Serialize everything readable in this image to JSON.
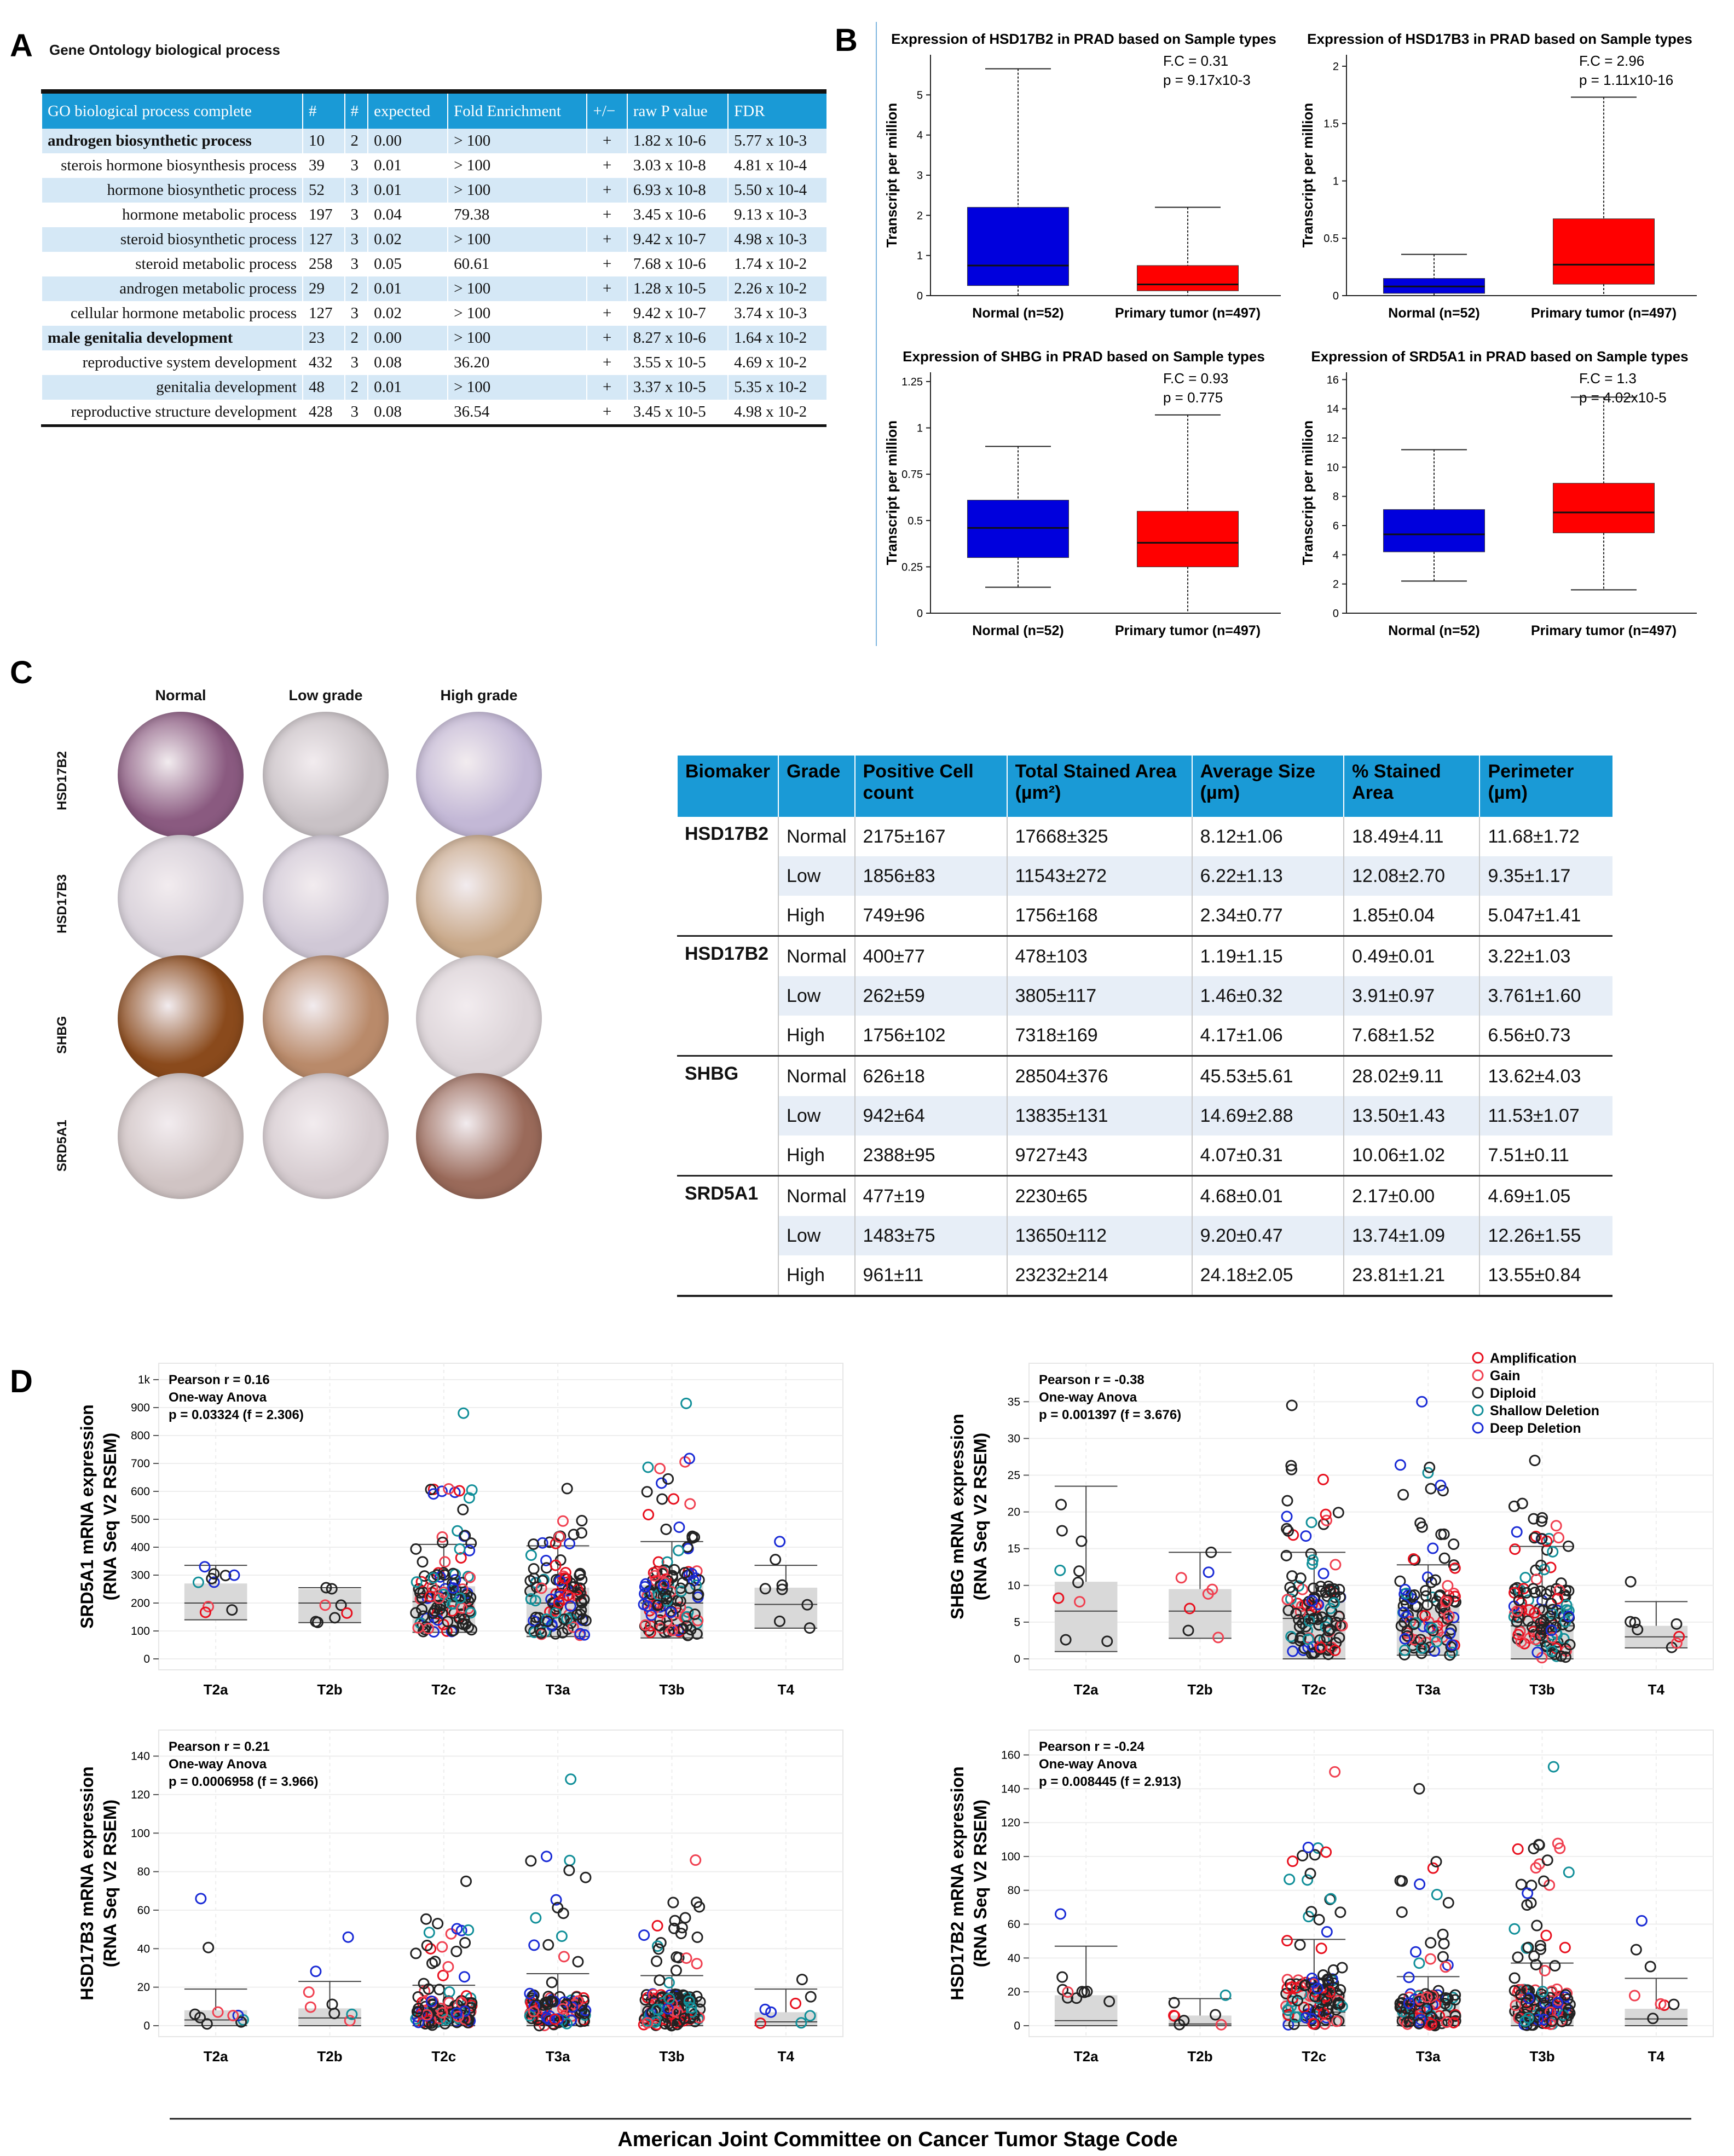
{
  "panel_labels": {
    "a": "A",
    "b": "B",
    "c": "C",
    "d": "D"
  },
  "panel_a": {
    "title": "Gene Ontology biological process",
    "headers": [
      "GO biological process complete",
      "#",
      "#",
      "expected",
      "Fold Enrichment",
      "+/−",
      "raw P value",
      "FDR"
    ],
    "rows": [
      {
        "process": "androgen biosynthetic process",
        "bold": true,
        "n1": "10",
        "n2": "2",
        "expected": "0.00",
        "fold": "> 100",
        "sign": "+",
        "p": "1.82 x 10-6",
        "fdr": "5.77 x 10-3"
      },
      {
        "process": "sterois hormone biosynthesis process",
        "bold": false,
        "n1": "39",
        "n2": "3",
        "expected": "0.01",
        "fold": "> 100",
        "sign": "+",
        "p": "3.03 x 10-8",
        "fdr": "4.81 x 10-4"
      },
      {
        "process": "hormone biosynthetic process",
        "bold": false,
        "n1": "52",
        "n2": "3",
        "expected": "0.01",
        "fold": "> 100",
        "sign": "+",
        "p": "6.93 x 10-8",
        "fdr": "5.50 x 10-4"
      },
      {
        "process": "hormone metabolic process",
        "bold": false,
        "n1": "197",
        "n2": "3",
        "expected": "0.04",
        "fold": "79.38",
        "sign": "+",
        "p": "3.45 x 10-6",
        "fdr": "9.13 x 10-3"
      },
      {
        "process": "steroid biosynthetic process",
        "bold": false,
        "n1": "127",
        "n2": "3",
        "expected": "0.02",
        "fold": "> 100",
        "sign": "+",
        "p": "9.42 x 10-7",
        "fdr": "4.98 x 10-3"
      },
      {
        "process": "steroid metabolic process",
        "bold": false,
        "n1": "258",
        "n2": "3",
        "expected": "0.05",
        "fold": "60.61",
        "sign": "+",
        "p": "7.68 x 10-6",
        "fdr": "1.74 x 10-2"
      },
      {
        "process": "androgen metabolic process",
        "bold": false,
        "n1": "29",
        "n2": "2",
        "expected": "0.01",
        "fold": "> 100",
        "sign": "+",
        "p": "1.28 x 10-5",
        "fdr": "2.26 x 10-2"
      },
      {
        "process": "cellular hormone metabolic process",
        "bold": false,
        "n1": "127",
        "n2": "3",
        "expected": "0.02",
        "fold": "> 100",
        "sign": "+",
        "p": "9.42 x 10-7",
        "fdr": "3.74 x 10-3"
      },
      {
        "process": "male genitalia development",
        "bold": true,
        "n1": "23",
        "n2": "2",
        "expected": "0.00",
        "fold": "> 100",
        "sign": "+",
        "p": "8.27 x 10-6",
        "fdr": "1.64 x 10-2"
      },
      {
        "process": "reproductive system development",
        "bold": false,
        "n1": "432",
        "n2": "3",
        "expected": "0.08",
        "fold": "36.20",
        "sign": "+",
        "p": "3.55 x 10-5",
        "fdr": "4.69 x 10-2"
      },
      {
        "process": "genitalia development",
        "bold": false,
        "n1": "48",
        "n2": "2",
        "expected": "0.01",
        "fold": "> 100",
        "sign": "+",
        "p": "3.37 x 10-5",
        "fdr": "5.35 x 10-2"
      },
      {
        "process": "reproductive structure development",
        "bold": false,
        "n1": "428",
        "n2": "3",
        "expected": "0.08",
        "fold": "36.54",
        "sign": "+",
        "p": "3.45 x 10-5",
        "fdr": "4.98 x 10-2"
      }
    ]
  },
  "panel_b": {
    "plots": [
      {
        "title": "Expression of HSD17B2 in PRAD based on Sample types",
        "fc": "F.C = 0.31",
        "p": "p = 9.17x10-3",
        "ylabel": "Transcript per million",
        "yticks": [
          "0",
          "1",
          "2",
          "3",
          "4",
          "5"
        ],
        "ymax": 6.0,
        "boxes": [
          {
            "label": "Normal (n=52)",
            "color": "#0000dd",
            "min": 0.0,
            "q1": 0.25,
            "median": 0.75,
            "q3": 2.2,
            "max": 5.65
          },
          {
            "label": "Primary tumor (n=497)",
            "color": "#ff0000",
            "min": 0.0,
            "q1": 0.12,
            "median": 0.28,
            "q3": 0.75,
            "max": 2.2
          }
        ]
      },
      {
        "title": "Expression of HSD17B3 in PRAD based on Sample types",
        "fc": "F.C = 2.96",
        "p": "p = 1.11x10-16",
        "ylabel": "Transcript per million",
        "yticks": [
          "0",
          "0.5",
          "1",
          "1.5",
          "2"
        ],
        "ymax": 2.1,
        "boxes": [
          {
            "label": "Normal (n=52)",
            "color": "#0000dd",
            "min": 0.0,
            "q1": 0.02,
            "median": 0.08,
            "q3": 0.15,
            "max": 0.36
          },
          {
            "label": "Primary tumor (n=497)",
            "color": "#ff0000",
            "min": 0.0,
            "q1": 0.1,
            "median": 0.27,
            "q3": 0.67,
            "max": 1.73
          }
        ]
      },
      {
        "title": "Expression of SHBG in PRAD based on Sample types",
        "fc": "F.C = 0.93",
        "p": "p = 0.775",
        "ylabel": "Transcript per million",
        "yticks": [
          "0",
          "0.25",
          "0.5",
          "0.75",
          "1",
          "1.25"
        ],
        "ymax": 1.3,
        "boxes": [
          {
            "label": "Normal (n=52)",
            "color": "#0000dd",
            "min": 0.14,
            "q1": 0.3,
            "median": 0.46,
            "q3": 0.61,
            "max": 0.9
          },
          {
            "label": "Primary tumor (n=497)",
            "color": "#ff0000",
            "min": 0.0,
            "q1": 0.25,
            "median": 0.38,
            "q3": 0.55,
            "max": 1.07
          }
        ]
      },
      {
        "title": "Expression of SRD5A1 in PRAD based on Sample types",
        "fc": "F.C = 1.3",
        "p": "p = 4.02x10-5",
        "ylabel": "Transcript per million",
        "yticks": [
          "0",
          "2",
          "4",
          "6",
          "8",
          "10",
          "12",
          "14",
          "16"
        ],
        "ymax": 16.5,
        "boxes": [
          {
            "label": "Normal (n=52)",
            "color": "#0000dd",
            "min": 2.2,
            "q1": 4.2,
            "median": 5.4,
            "q3": 7.1,
            "max": 11.2
          },
          {
            "label": "Primary tumor (n=497)",
            "color": "#ff0000",
            "min": 1.6,
            "q1": 5.5,
            "median": 6.9,
            "q3": 8.9,
            "max": 14.8
          }
        ]
      }
    ]
  },
  "panel_c": {
    "column_headers": [
      "Normal",
      "Low grade",
      "High grade"
    ],
    "row_labels": [
      "HSD17B2",
      "HSD17B3",
      "SHBG",
      "SRD5A1"
    ],
    "table_headers": [
      "Biomaker",
      "Grade",
      "Positive Cell count",
      "Total Stained Area (µm²)",
      "Average Size (µm)",
      "% Stained Area",
      "Perimeter (µm)"
    ],
    "groups": [
      {
        "gene": "HSD17B2",
        "rows": [
          [
            "Normal",
            "2175±167",
            "17668±325",
            "8.12±1.06",
            "18.49±4.11",
            "11.68±1.72"
          ],
          [
            "Low",
            "1856±83",
            "11543±272",
            "6.22±1.13",
            "12.08±2.70",
            "9.35±1.17"
          ],
          [
            "High",
            "749±96",
            "1756±168",
            "2.34±0.77",
            "1.85±0.04",
            "5.047±1.41"
          ]
        ]
      },
      {
        "gene": "HSD17B2",
        "rows": [
          [
            "Normal",
            "400±77",
            "478±103",
            "1.19±1.15",
            "0.49±0.01",
            "3.22±1.03"
          ],
          [
            "Low",
            "262±59",
            "3805±117",
            "1.46±0.32",
            "3.91±0.97",
            "3.761±1.60"
          ],
          [
            "High",
            "1756±102",
            "7318±169",
            "4.17±1.06",
            "7.68±1.52",
            "6.56±0.73"
          ]
        ]
      },
      {
        "gene": "SHBG",
        "rows": [
          [
            "Normal",
            "626±18",
            "28504±376",
            "45.53±5.61",
            "28.02±9.11",
            "13.62±4.03"
          ],
          [
            "Low",
            "942±64",
            "13835±131",
            "14.69±2.88",
            "13.50±1.43",
            "11.53±1.07"
          ],
          [
            "High",
            "2388±95",
            "9727±43",
            "4.07±0.31",
            "10.06±1.02",
            "7.51±0.11"
          ]
        ]
      },
      {
        "gene": "SRD5A1",
        "rows": [
          [
            "Normal",
            "477±19",
            "2230±65",
            "4.68±0.01",
            "2.17±0.00",
            "4.69±1.05"
          ],
          [
            "Low",
            "1483±75",
            "13650±112",
            "9.20±0.47",
            "13.74±1.09",
            "12.26±1.55"
          ],
          [
            "High",
            "961±11",
            "23232±214",
            "24.18±2.05",
            "23.81±1.21",
            "13.55±0.84"
          ]
        ]
      }
    ],
    "ihc_colors": [
      [
        "#8a5a80",
        "#c9c2c6",
        "#c3b8d6"
      ],
      [
        "#d6cfd8",
        "#d0c8d6",
        "#c9a98a"
      ],
      [
        "#8a4a1c",
        "#b98a6a",
        "#dcd4d8"
      ],
      [
        "#d0c4c4",
        "#d6ccd0",
        "#9a6a5a"
      ]
    ]
  },
  "panel_d": {
    "xlabel": "American Joint Committee on Cancer Tumor Stage Code",
    "categories": [
      "T2a",
      "T2b",
      "T2c",
      "T3a",
      "T3b",
      "T4"
    ],
    "legend": [
      {
        "label": "Amplification",
        "color": "#e8101e"
      },
      {
        "label": "Gain",
        "color": "#f04050"
      },
      {
        "label": "Diploid",
        "color": "#222222"
      },
      {
        "label": "Shallow Deletion",
        "color": "#118f99"
      },
      {
        "label": "Deep Deletion",
        "color": "#1a2bd6"
      }
    ],
    "plots": [
      {
        "ylabel1": "SRD5A1 mRNA expression",
        "ylabel2": "(RNA Seq V2 RSEM)",
        "pearson": "Pearson r = 0.16",
        "anova": "One-way Anova",
        "pval": "p = 0.03324 (f = 2.306)",
        "yticks": [
          "0",
          "100",
          "200",
          "300",
          "400",
          "500",
          "600",
          "700",
          "800",
          "900",
          "1k"
        ],
        "ymax": 1000,
        "stats": [
          [
            140,
            200,
            270,
            335
          ],
          [
            130,
            200,
            250,
            255
          ],
          [
            95,
            205,
            260,
            410
          ],
          [
            80,
            200,
            255,
            405
          ],
          [
            75,
            200,
            265,
            420
          ],
          [
            110,
            195,
            255,
            335
          ]
        ],
        "ranges": [
          [
            140,
            330
          ],
          [
            130,
            255
          ],
          [
            80,
            880
          ],
          [
            80,
            610
          ],
          [
            70,
            915
          ],
          [
            100,
            420
          ]
        ],
        "counts": [
          10,
          8,
          120,
          110,
          130,
          8
        ]
      },
      {
        "ylabel1": "SHBG mRNA expression",
        "ylabel2": "(RNA Seq V2 RSEM)",
        "pearson": "Pearson r = -0.38",
        "anova": "One-way Anova",
        "pval": "p = 0.001397 (f = 3.676)",
        "yticks": [
          "0",
          "5",
          "10",
          "15",
          "20",
          "25",
          "30",
          "35"
        ],
        "ymax": 38,
        "stats": [
          [
            1,
            6.5,
            10.5,
            23.5
          ],
          [
            2.8,
            6.5,
            9.5,
            14.5
          ],
          [
            0,
            5.5,
            7.8,
            14.5
          ],
          [
            0.5,
            5,
            7,
            12.8
          ],
          [
            0,
            4.5,
            7.5,
            15.3
          ],
          [
            1.5,
            3,
            4.5,
            7.8
          ]
        ],
        "ranges": [
          [
            1,
            21
          ],
          [
            2.8,
            14.5
          ],
          [
            0,
            34.5
          ],
          [
            0,
            35
          ],
          [
            0,
            27
          ],
          [
            1,
            10.5
          ]
        ],
        "counts": [
          10,
          8,
          120,
          110,
          130,
          8
        ]
      },
      {
        "ylabel1": "HSD17B3 mRNA expression",
        "ylabel2": "(RNA Seq V2 RSEM)",
        "pearson": "Pearson r = 0.21",
        "anova": "One-way Anova",
        "pval": "p = 0.0006958 (f = 3.966)",
        "yticks": [
          "0",
          "20",
          "40",
          "60",
          "80",
          "100",
          "120",
          "140"
        ],
        "ymax": 145,
        "stats": [
          [
            0,
            3,
            8,
            19
          ],
          [
            0,
            4,
            9,
            23
          ],
          [
            0,
            4,
            10,
            21
          ],
          [
            0,
            5,
            12,
            27
          ],
          [
            0,
            5,
            13,
            26
          ],
          [
            0,
            2,
            7,
            19
          ]
        ],
        "ranges": [
          [
            0,
            66
          ],
          [
            0,
            46
          ],
          [
            0,
            75
          ],
          [
            0,
            128
          ],
          [
            0,
            86
          ],
          [
            0,
            24
          ]
        ],
        "counts": [
          10,
          8,
          120,
          110,
          130,
          8
        ]
      },
      {
        "ylabel1": "HSD17B2 mRNA expression",
        "ylabel2": "(RNA Seq V2 RSEM)",
        "pearson": "Pearson r = -0.24",
        "anova": "One-way Anova",
        "pval": "p = 0.008445 (f = 2.913)",
        "yticks": [
          "0",
          "20",
          "40",
          "60",
          "80",
          "100",
          "120",
          "140",
          "160"
        ],
        "ymax": 165,
        "stats": [
          [
            0,
            3,
            18,
            47
          ],
          [
            0,
            1,
            6,
            16
          ],
          [
            0,
            8,
            22,
            51
          ],
          [
            0,
            5,
            14,
            29
          ],
          [
            0,
            6,
            17,
            37
          ],
          [
            0,
            4,
            10,
            28
          ]
        ],
        "ranges": [
          [
            0,
            66
          ],
          [
            0,
            18
          ],
          [
            0,
            150
          ],
          [
            0,
            140
          ],
          [
            0,
            153
          ],
          [
            0,
            62
          ]
        ],
        "counts": [
          10,
          8,
          120,
          110,
          130,
          8
        ]
      }
    ]
  }
}
